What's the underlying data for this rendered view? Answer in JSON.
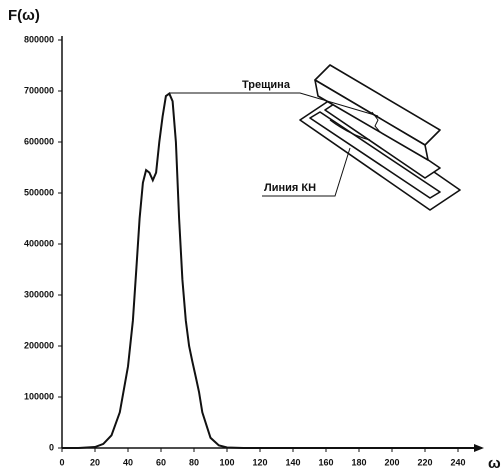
{
  "chart_data": {
    "type": "line",
    "y_label": "F(ω)",
    "x_label": "ω",
    "annotations": [
      "Трещина",
      "Линия КН"
    ],
    "x": [
      0,
      10,
      20,
      25,
      30,
      35,
      40,
      43,
      45,
      47,
      49,
      51,
      53,
      55,
      57,
      59,
      61,
      63,
      65,
      67,
      69,
      71,
      73,
      75,
      77,
      79,
      81,
      83,
      85,
      88,
      90,
      95,
      100,
      110,
      250
    ],
    "values": [
      0,
      0,
      2000,
      8000,
      25000,
      70000,
      160000,
      250000,
      350000,
      450000,
      520000,
      545000,
      540000,
      525000,
      540000,
      600000,
      650000,
      690000,
      695000,
      680000,
      600000,
      450000,
      330000,
      250000,
      200000,
      170000,
      140000,
      110000,
      70000,
      40000,
      20000,
      5000,
      1000,
      0,
      0
    ],
    "color": "#111111",
    "xlim": [
      0,
      250
    ],
    "xticks": [
      0,
      20,
      40,
      60,
      80,
      100,
      120,
      140,
      160,
      180,
      200,
      220,
      240
    ],
    "ylim": [
      0,
      800000
    ],
    "yticks": [
      0,
      100000,
      200000,
      300000,
      400000,
      500000,
      600000,
      700000,
      800000
    ]
  }
}
